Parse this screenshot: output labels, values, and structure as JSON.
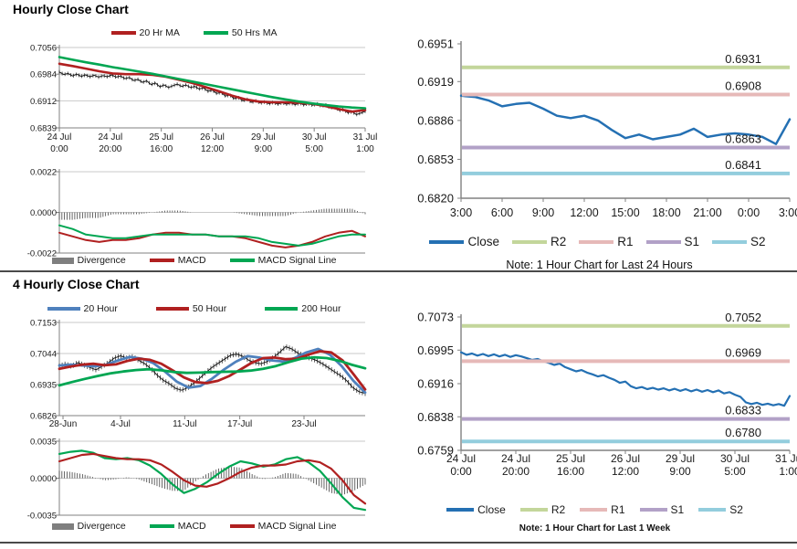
{
  "titles": {
    "hourly": "Hourly Close Chart",
    "four_hourly": "4 Hourly Close Chart"
  },
  "colors": {
    "ma_red": "#B02020",
    "ma_green": "#00A652",
    "ma_blue": "#4F81BD",
    "close_blue": "#2470B3",
    "close_black": "#1a1a1a",
    "r2": "#C3D69B",
    "r1": "#E6B9B8",
    "s1": "#B2A1C7",
    "s2": "#93CDDD",
    "divergence": "#404040",
    "grid": "#c9c9c9",
    "axis": "#808080"
  },
  "chart_data": [
    {
      "id": "hourly-price",
      "type": "line",
      "title": "Hourly Close Chart",
      "yticks": [
        "0.7056",
        "0.6984",
        "0.6912",
        "0.6839"
      ],
      "xticks": [
        [
          "24 Jul",
          "0:00"
        ],
        [
          "24 Jul",
          "20:00"
        ],
        [
          "25 Jul",
          "16:00"
        ],
        [
          "26 Jul",
          "12:00"
        ],
        [
          "29 Jul",
          "9:00"
        ],
        [
          "30 Jul",
          "5:00"
        ],
        [
          "31 Jul",
          "1:00"
        ]
      ],
      "legend": [
        {
          "label": "20 Hr MA",
          "color": "#B02020"
        },
        {
          "label": "50 Hrs MA",
          "color": "#00A652"
        }
      ],
      "series": [
        {
          "name": "Close",
          "color": "#1a1a1a",
          "width": 1,
          "fuzz": 0.0005,
          "values": [
            0.699,
            0.6983,
            0.6986,
            0.6979,
            0.6984,
            0.6978,
            0.6982,
            0.6977,
            0.6981,
            0.6976,
            0.698,
            0.6977,
            0.6982,
            0.6976,
            0.6979,
            0.6972,
            0.6975,
            0.6967,
            0.697,
            0.6962,
            0.6966,
            0.6956,
            0.696,
            0.695,
            0.6955,
            0.6948,
            0.6953,
            0.6957,
            0.6951,
            0.6955,
            0.6948,
            0.6951,
            0.6944,
            0.6947,
            0.6938,
            0.6941,
            0.6932,
            0.6935,
            0.6925,
            0.6928,
            0.6918,
            0.6921,
            0.6912,
            0.6916,
            0.6908,
            0.6912,
            0.6906,
            0.6909,
            0.6904,
            0.6908,
            0.6903,
            0.6907,
            0.6903,
            0.6906,
            0.6902,
            0.6906,
            0.6901,
            0.6905,
            0.69,
            0.6904,
            0.6898,
            0.6901,
            0.6893,
            0.6896,
            0.6886,
            0.6889,
            0.688,
            0.6883,
            0.6875,
            0.6879,
            0.6884
          ]
        },
        {
          "name": "20 Hr MA",
          "color": "#B02020",
          "width": 2.6,
          "values": [
            0.7012,
            0.7006,
            0.6999,
            0.6992,
            0.6986,
            0.6984,
            0.6984,
            0.6982,
            0.6977,
            0.6969,
            0.696,
            0.6949,
            0.6938,
            0.6926,
            0.6916,
            0.691,
            0.6908,
            0.6908,
            0.6907,
            0.6904,
            0.6898,
            0.689,
            0.6883,
            0.6887
          ]
        },
        {
          "name": "50 Hrs MA",
          "color": "#00A652",
          "width": 2.6,
          "values": [
            0.703,
            0.7023,
            0.7016,
            0.701,
            0.7003,
            0.6997,
            0.6991,
            0.6985,
            0.6978,
            0.6971,
            0.6964,
            0.6957,
            0.695,
            0.6943,
            0.6936,
            0.6929,
            0.6922,
            0.6916,
            0.691,
            0.6905,
            0.6901,
            0.6897,
            0.6894,
            0.6892
          ]
        }
      ]
    },
    {
      "id": "hourly-macd",
      "type": "bar-line",
      "yticks": [
        "0.0022",
        "0.0000",
        "-0.0022"
      ],
      "divergence_color": "#404040",
      "legend": [
        {
          "label": "Divergence",
          "color": "#7F7F7F",
          "swatch": "bar"
        },
        {
          "label": "MACD",
          "color": "#B02020"
        },
        {
          "label": "MACD Signal Line",
          "color": "#00A652"
        }
      ],
      "series": [
        {
          "name": "MACD",
          "color": "#B02020",
          "width": 2,
          "values": [
            -0.0011,
            -0.0013,
            -0.0015,
            -0.0016,
            -0.0015,
            -0.0015,
            -0.0014,
            -0.0012,
            -0.0011,
            -0.0011,
            -0.0012,
            -0.0012,
            -0.0013,
            -0.0013,
            -0.0014,
            -0.0016,
            -0.0018,
            -0.0019,
            -0.0018,
            -0.0016,
            -0.0013,
            -0.0011,
            -0.001,
            -0.0013
          ]
        },
        {
          "name": "MACD Signal Line",
          "color": "#00A652",
          "width": 2,
          "values": [
            -0.0007,
            -0.0009,
            -0.0012,
            -0.0013,
            -0.0014,
            -0.0014,
            -0.0013,
            -0.0012,
            -0.0012,
            -0.0012,
            -0.0012,
            -0.0012,
            -0.0013,
            -0.0013,
            -0.0013,
            -0.0014,
            -0.0016,
            -0.0017,
            -0.0018,
            -0.0017,
            -0.0015,
            -0.0013,
            -0.0012,
            -0.0012
          ]
        }
      ]
    },
    {
      "id": "hourly-pivot",
      "type": "line",
      "note": "Note: 1 Hour Chart for Last 24 Hours",
      "yticks": [
        "0.6951",
        "0.6919",
        "0.6886",
        "0.6853",
        "0.6820"
      ],
      "xticks": [
        "3:00",
        "6:00",
        "9:00",
        "12:00",
        "15:00",
        "18:00",
        "21:00",
        "0:00",
        "3:00"
      ],
      "legend": [
        {
          "label": "Close",
          "color": "#2470B3"
        },
        {
          "label": "R2",
          "color": "#C3D69B"
        },
        {
          "label": "R1",
          "color": "#E6B9B8"
        },
        {
          "label": "S1",
          "color": "#B2A1C7"
        },
        {
          "label": "S2",
          "color": "#93CDDD"
        }
      ],
      "series": [
        {
          "name": "Close",
          "color": "#2470B3",
          "width": 2.5,
          "values": [
            0.6907,
            0.6906,
            0.6903,
            0.6898,
            0.69,
            0.6901,
            0.6896,
            0.689,
            0.6888,
            0.689,
            0.6886,
            0.6878,
            0.6871,
            0.6874,
            0.687,
            0.6872,
            0.6874,
            0.6879,
            0.6872,
            0.6874,
            0.6875,
            0.6874,
            0.6872,
            0.6866,
            0.6887
          ]
        }
      ],
      "pivots": [
        {
          "name": "R2",
          "value": 0.6931,
          "label": "0.6931",
          "color": "#C3D69B"
        },
        {
          "name": "R1",
          "value": 0.6908,
          "label": "0.6908",
          "color": "#E6B9B8"
        },
        {
          "name": "S1",
          "value": 0.6863,
          "label": "0.6863",
          "color": "#B2A1C7"
        },
        {
          "name": "S2",
          "value": 0.6841,
          "label": "0.6841",
          "color": "#93CDDD"
        }
      ]
    },
    {
      "id": "four-hourly-price",
      "type": "line",
      "title": "4 Hourly Close Chart",
      "yticks": [
        "0.7153",
        "0.7044",
        "0.6935",
        "0.6826"
      ],
      "xticks": [
        "28-Jun",
        "4-Jul",
        "11-Jul",
        "17-Jul",
        "23-Jul"
      ],
      "legend": [
        {
          "label": "20 Hour",
          "color": "#4F81BD"
        },
        {
          "label": "50 Hour",
          "color": "#B02020"
        },
        {
          "label": "200 Hour",
          "color": "#00A652"
        }
      ],
      "series": [
        {
          "name": "Close",
          "color": "#1a1a1a",
          "width": 1,
          "fuzz": 0.0009,
          "values": [
            0.7,
            0.7007,
            0.6999,
            0.7012,
            0.7004,
            0.6995,
            0.6987,
            0.6999,
            0.7012,
            0.7028,
            0.7036,
            0.7028,
            0.7033,
            0.702,
            0.7008,
            0.699,
            0.6968,
            0.695,
            0.6938,
            0.6922,
            0.6915,
            0.6924,
            0.694,
            0.6958,
            0.6978,
            0.6996,
            0.701,
            0.7024,
            0.7038,
            0.7042,
            0.7034,
            0.702,
            0.7012,
            0.7008,
            0.7016,
            0.703,
            0.7048,
            0.7068,
            0.706,
            0.7046,
            0.7036,
            0.7028,
            0.702,
            0.7008,
            0.6994,
            0.698,
            0.6966,
            0.6948,
            0.6924,
            0.691,
            0.6904
          ]
        },
        {
          "name": "20 Hour",
          "color": "#4F81BD",
          "width": 2.8,
          "values": [
            0.7002,
            0.7005,
            0.7002,
            0.6999,
            0.7005,
            0.702,
            0.7032,
            0.7026,
            0.701,
            0.698,
            0.6945,
            0.6924,
            0.693,
            0.6956,
            0.6988,
            0.7015,
            0.7035,
            0.703,
            0.702,
            0.7016,
            0.7028,
            0.7048,
            0.706,
            0.704,
            0.7,
            0.6948,
            0.6907
          ]
        },
        {
          "name": "50 Hour",
          "color": "#B02020",
          "width": 2.8,
          "values": [
            0.699,
            0.6998,
            0.7005,
            0.7008,
            0.7003,
            0.7006,
            0.7018,
            0.7026,
            0.7022,
            0.7008,
            0.6985,
            0.696,
            0.6944,
            0.694,
            0.6948,
            0.6965,
            0.6988,
            0.7012,
            0.7028,
            0.703,
            0.7024,
            0.7026,
            0.704,
            0.7052,
            0.7048,
            0.702,
            0.697,
            0.6918
          ]
        },
        {
          "name": "200 Hour",
          "color": "#00A652",
          "width": 2.8,
          "values": [
            0.6932,
            0.6944,
            0.6955,
            0.6965,
            0.6974,
            0.6981,
            0.6986,
            0.6989,
            0.6985,
            0.6979,
            0.6976,
            0.6977,
            0.6979,
            0.698,
            0.6981,
            0.6984,
            0.699,
            0.7,
            0.7014,
            0.7026,
            0.7031,
            0.7028,
            0.7018,
            0.7004,
            0.6992
          ]
        }
      ]
    },
    {
      "id": "four-hourly-macd",
      "type": "bar-line",
      "yticks": [
        "0.0035",
        "0.0000",
        "-0.0035"
      ],
      "divergence_color": "#404040",
      "legend": [
        {
          "label": "Divergence",
          "color": "#7F7F7F",
          "swatch": "bar"
        },
        {
          "label": "MACD",
          "color": "#00A652"
        },
        {
          "label": "MACD Signal Line",
          "color": "#B02020"
        }
      ],
      "series": [
        {
          "name": "MACD",
          "color": "#00A652",
          "width": 2.2,
          "values": [
            0.0023,
            0.0025,
            0.0026,
            0.0024,
            0.0019,
            0.0018,
            0.0019,
            0.0017,
            0.0012,
            0.0004,
            -0.0006,
            -0.0014,
            -0.001,
            -0.0004,
            0.0004,
            0.0011,
            0.0016,
            0.0014,
            0.0011,
            0.0013,
            0.0018,
            0.002,
            0.0015,
            0.0007,
            -0.0005,
            -0.0018,
            -0.0028,
            -0.003
          ]
        },
        {
          "name": "MACD Signal Line",
          "color": "#B02020",
          "width": 2.2,
          "values": [
            0.0016,
            0.0019,
            0.0022,
            0.0023,
            0.0021,
            0.0019,
            0.0018,
            0.0018,
            0.0017,
            0.0013,
            0.0006,
            -0.0002,
            -0.0007,
            -0.0008,
            -0.0005,
            0.0,
            0.0006,
            0.001,
            0.0012,
            0.0012,
            0.0013,
            0.0016,
            0.0017,
            0.0015,
            0.0009,
            -0.0002,
            -0.0016,
            -0.0024
          ]
        }
      ]
    },
    {
      "id": "weekly-pivot",
      "type": "line",
      "note": "Note: 1 Hour Chart for Last 1 Week",
      "yticks": [
        "0.7073",
        "0.6995",
        "0.6916",
        "0.6838",
        "0.6759"
      ],
      "xticks": [
        [
          "24 Jul",
          "0:00"
        ],
        [
          "24 Jul",
          "20:00"
        ],
        [
          "25 Jul",
          "16:00"
        ],
        [
          "26 Jul",
          "12:00"
        ],
        [
          "29 Jul",
          "9:00"
        ],
        [
          "30 Jul",
          "5:00"
        ],
        [
          "31 Jul",
          "1:00"
        ]
      ],
      "legend": [
        {
          "label": "Close",
          "color": "#2470B3"
        },
        {
          "label": "R2",
          "color": "#C3D69B"
        },
        {
          "label": "R1",
          "color": "#E6B9B8"
        },
        {
          "label": "S1",
          "color": "#B2A1C7"
        },
        {
          "label": "S2",
          "color": "#93CDDD"
        }
      ],
      "series": [
        {
          "name": "Close",
          "color": "#2470B3",
          "width": 2.2,
          "values": [
            0.699,
            0.6984,
            0.6987,
            0.6982,
            0.6986,
            0.6981,
            0.6985,
            0.698,
            0.6984,
            0.6979,
            0.6983,
            0.698,
            0.6976,
            0.6972,
            0.6974,
            0.6969,
            0.6965,
            0.696,
            0.6963,
            0.6955,
            0.695,
            0.6945,
            0.6948,
            0.6942,
            0.6938,
            0.6933,
            0.6936,
            0.693,
            0.6925,
            0.6918,
            0.6921,
            0.691,
            0.6905,
            0.6908,
            0.6903,
            0.6906,
            0.6902,
            0.6905,
            0.69,
            0.6904,
            0.6899,
            0.6903,
            0.6898,
            0.6902,
            0.6897,
            0.6901,
            0.6896,
            0.69,
            0.6893,
            0.6896,
            0.689,
            0.6885,
            0.6872,
            0.6868,
            0.6871,
            0.6866,
            0.6869,
            0.6865,
            0.6868,
            0.6864,
            0.6887
          ]
        }
      ],
      "pivots": [
        {
          "name": "R2",
          "value": 0.7052,
          "label": "0.7052",
          "color": "#C3D69B"
        },
        {
          "name": "R1",
          "value": 0.6969,
          "label": "0.6969",
          "color": "#E6B9B8"
        },
        {
          "name": "S1",
          "value": 0.6833,
          "label": "0.6833",
          "color": "#B2A1C7"
        },
        {
          "name": "S2",
          "value": 0.678,
          "label": "0.6780",
          "color": "#93CDDD"
        }
      ]
    }
  ]
}
